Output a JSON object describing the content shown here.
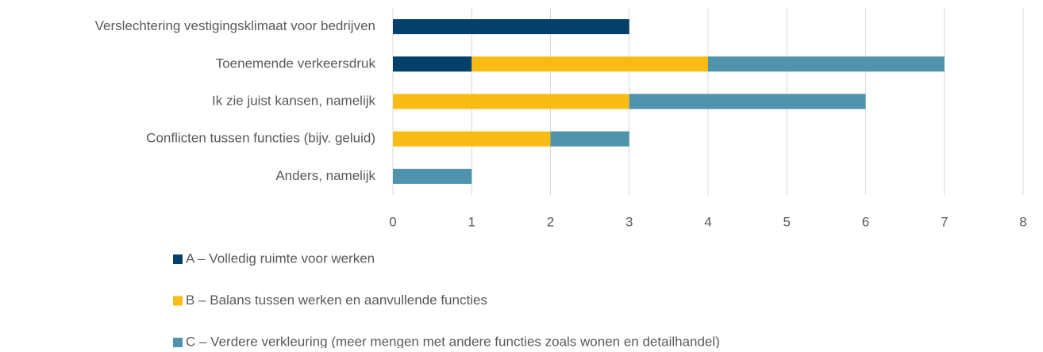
{
  "chart_data": {
    "type": "stacked-bar-horizontal",
    "categories": [
      "Verslechtering vestigingsklimaat voor bedrijven",
      "Toenemende verkeersdruk",
      "Ik zie juist kansen, namelijk",
      "Conflicten tussen functies (bijv. geluid)",
      "Anders, namelijk"
    ],
    "series": [
      {
        "name": "A – Volledig ruimte voor werken",
        "color": "#03406b",
        "values": [
          3,
          1,
          0,
          0,
          0
        ]
      },
      {
        "name": "B – Balans tussen werken en aanvullende functies",
        "color": "#f9bc15",
        "values": [
          0,
          3,
          3,
          2,
          0
        ]
      },
      {
        "name": "C – Verdere verkleuring (meer mengen met andere functies zoals wonen en detailhandel)",
        "color": "#4f93ad",
        "values": [
          0,
          3,
          3,
          1,
          1
        ]
      }
    ],
    "xlim": [
      0,
      8
    ],
    "xticks": [
      0,
      1,
      2,
      3,
      4,
      5,
      6,
      7,
      8
    ],
    "grid": true,
    "legend": "bottom"
  }
}
